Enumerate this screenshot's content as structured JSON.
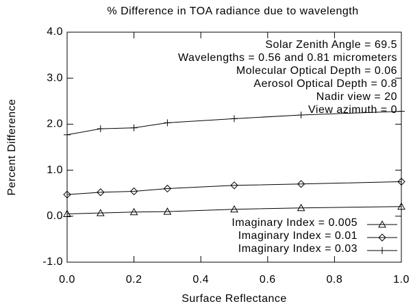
{
  "chart_data": {
    "type": "line",
    "title": "% Difference in TOA radiance due to wavelength",
    "xlabel": "Surface Reflectance",
    "ylabel": "Percent Difference",
    "annotations": [
      "Solar Zenith Angle = 69.5",
      "Wavelengths = 0.56 and 0.81 micrometers",
      "Molecular Optical Depth = 0.06",
      "Aerosol Optical Depth = 0.8",
      "Nadir view = 20",
      "View azimuth = 0"
    ],
    "x": [
      0.0,
      0.1,
      0.2,
      0.3,
      0.5,
      0.7,
      1.0
    ],
    "series": [
      {
        "name": "Imaginary Index = 0.005",
        "color": "#000000",
        "marker": "triangle",
        "values": [
          0.05,
          0.07,
          0.09,
          0.1,
          0.15,
          0.18,
          0.21
        ]
      },
      {
        "name": "Imaginary Index = 0.01",
        "color": "#000000",
        "marker": "diamond",
        "values": [
          0.47,
          0.52,
          0.54,
          0.6,
          0.67,
          0.7,
          0.75
        ]
      },
      {
        "name": "Imaginary Index = 0.03",
        "color": "#000000",
        "marker": "plus",
        "values": [
          1.77,
          1.9,
          1.92,
          2.03,
          2.12,
          2.2,
          2.28
        ]
      }
    ],
    "xlim": [
      0.0,
      1.0
    ],
    "xticks": [
      {
        "value": 0.0,
        "label": "0.0"
      },
      0.2,
      0.4,
      0.6,
      0.8,
      {
        "value": 1.0,
        "label": "1.0"
      }
    ],
    "ylim": [
      -1.0,
      4.0
    ],
    "yticks": [
      {
        "value": -1.0,
        "label": "-1.0"
      },
      {
        "value": 0.0,
        "label": "0.0"
      },
      {
        "value": 1.0,
        "label": "1.0"
      },
      {
        "value": 2.0,
        "label": "2.0"
      },
      {
        "value": 3.0,
        "label": "3.0"
      },
      {
        "value": 4.0,
        "label": "4.0"
      }
    ],
    "legend": "lower right",
    "grid": false
  }
}
